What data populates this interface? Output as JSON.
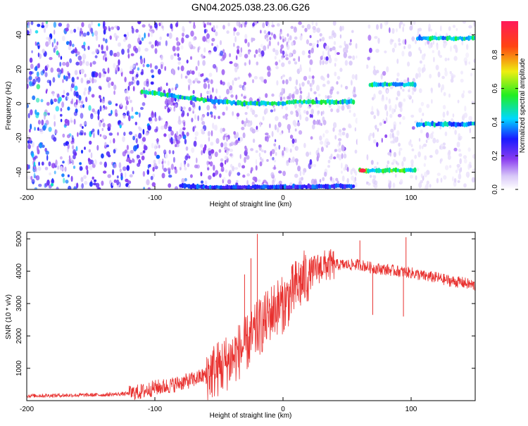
{
  "title": "GN04.2025.038.23.06.G26",
  "chart_data": [
    {
      "type": "heatmap",
      "xlabel": "Height of straight line (km)",
      "ylabel": "Frequency (Hz)",
      "xlim": [
        -200,
        150
      ],
      "ylim": [
        -50,
        48
      ],
      "xticks": [
        -200,
        -100,
        0,
        100
      ],
      "yticks": [
        -40,
        -20,
        0,
        20,
        40
      ],
      "colorbar": {
        "label": "Normalized spectral amplitude",
        "range": [
          0.0,
          1.0
        ],
        "ticks": [
          0.0,
          0.2,
          0.4,
          0.6,
          0.8
        ],
        "tick_labels": [
          "0.0",
          "0.2",
          "0.4",
          "0.6",
          "0.8"
        ]
      },
      "features": [
        {
          "name": "main-carrier-line",
          "points": [
            [
              -110,
              7
            ],
            [
              -90,
              5
            ],
            [
              -70,
              3
            ],
            [
              -50,
              1
            ],
            [
              -30,
              0
            ],
            [
              0,
              0
            ],
            [
              10,
              1
            ],
            [
              55,
              1
            ]
          ],
          "amplitude": 0.45
        },
        {
          "name": "lower-edge-line",
          "points": [
            [
              -80,
              -48
            ],
            [
              -40,
              -49
            ],
            [
              0,
              -48.5
            ],
            [
              55,
              -48
            ]
          ],
          "amplitude": 0.3
        },
        {
          "name": "segment-a",
          "points": [
            [
              60,
              -39
            ],
            [
              103,
              -39
            ]
          ],
          "amplitude": 0.5
        },
        {
          "name": "segment-b",
          "points": [
            [
              68,
              11
            ],
            [
              103,
              11
            ]
          ],
          "amplitude": 0.45
        },
        {
          "name": "segment-c",
          "points": [
            [
              105,
              38
            ],
            [
              150,
              38
            ]
          ],
          "amplitude": 0.45
        },
        {
          "name": "segment-d",
          "points": [
            [
              105,
              -12
            ],
            [
              150,
              -12
            ]
          ],
          "amplitude": 0.4
        }
      ],
      "data_gap": [
        [
          58,
          65
        ]
      ]
    },
    {
      "type": "line",
      "xlabel": "Height of straight line (km)",
      "ylabel": "SNR (10 * v/v)",
      "xlim": [
        -200,
        150
      ],
      "ylim": [
        0,
        5200
      ],
      "xticks": [
        -200,
        -100,
        0,
        100
      ],
      "yticks": [
        1000,
        2000,
        3000,
        4000,
        5000
      ],
      "color": "#e8302e",
      "series": [
        {
          "x": [
            -200,
            -180,
            -160,
            -140,
            -120,
            -110,
            -100,
            -90,
            -80,
            -70,
            -60,
            -50,
            -40,
            -30,
            -25,
            -20,
            -15,
            -10,
            -5,
            0,
            5,
            10,
            15,
            20,
            30,
            40,
            50,
            60,
            70,
            80,
            90,
            100,
            110,
            120,
            130,
            140,
            150
          ],
          "y": [
            150,
            160,
            170,
            180,
            220,
            280,
            400,
            450,
            550,
            650,
            800,
            1000,
            1300,
            1700,
            1900,
            2200,
            2400,
            2700,
            2900,
            2950,
            3200,
            3500,
            3700,
            3900,
            4150,
            4200,
            4200,
            4200,
            4100,
            4050,
            4000,
            3950,
            3850,
            3800,
            3700,
            3650,
            3550
          ]
        }
      ],
      "spikes": [
        {
          "x": -20,
          "y": 5150
        },
        {
          "x": -25,
          "y": 4400
        },
        {
          "x": -30,
          "y": 3900
        },
        {
          "x": 60,
          "y": 4950
        },
        {
          "x": 96,
          "y": 5050
        },
        {
          "x": 70,
          "y": 2650
        },
        {
          "x": 94,
          "y": 2600
        }
      ]
    }
  ]
}
